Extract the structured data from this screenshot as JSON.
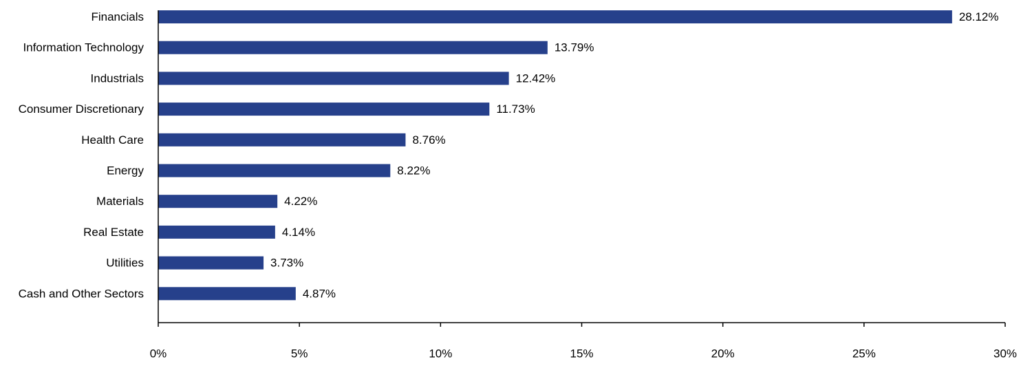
{
  "chart_data": {
    "type": "bar",
    "orientation": "horizontal",
    "categories": [
      "Financials",
      "Information Technology",
      "Industrials",
      "Consumer Discretionary",
      "Health Care",
      "Energy",
      "Materials",
      "Real Estate",
      "Utilities",
      "Cash and Other Sectors"
    ],
    "values": [
      28.12,
      13.79,
      12.42,
      11.73,
      8.76,
      8.22,
      4.22,
      4.14,
      3.73,
      4.87
    ],
    "value_labels": [
      "28.12%",
      "13.79%",
      "12.42%",
      "11.73%",
      "8.76%",
      "8.22%",
      "4.22%",
      "4.14%",
      "3.73%",
      "4.87%"
    ],
    "xlim": [
      0,
      30
    ],
    "x_ticks": [
      0,
      5,
      10,
      15,
      20,
      25,
      30
    ],
    "x_tick_labels": [
      "0%",
      "5%",
      "10%",
      "15%",
      "20%",
      "25%",
      "30%"
    ],
    "grid": false,
    "legend": "none",
    "bar_color": "#26408B",
    "axis_color": "#000000"
  }
}
